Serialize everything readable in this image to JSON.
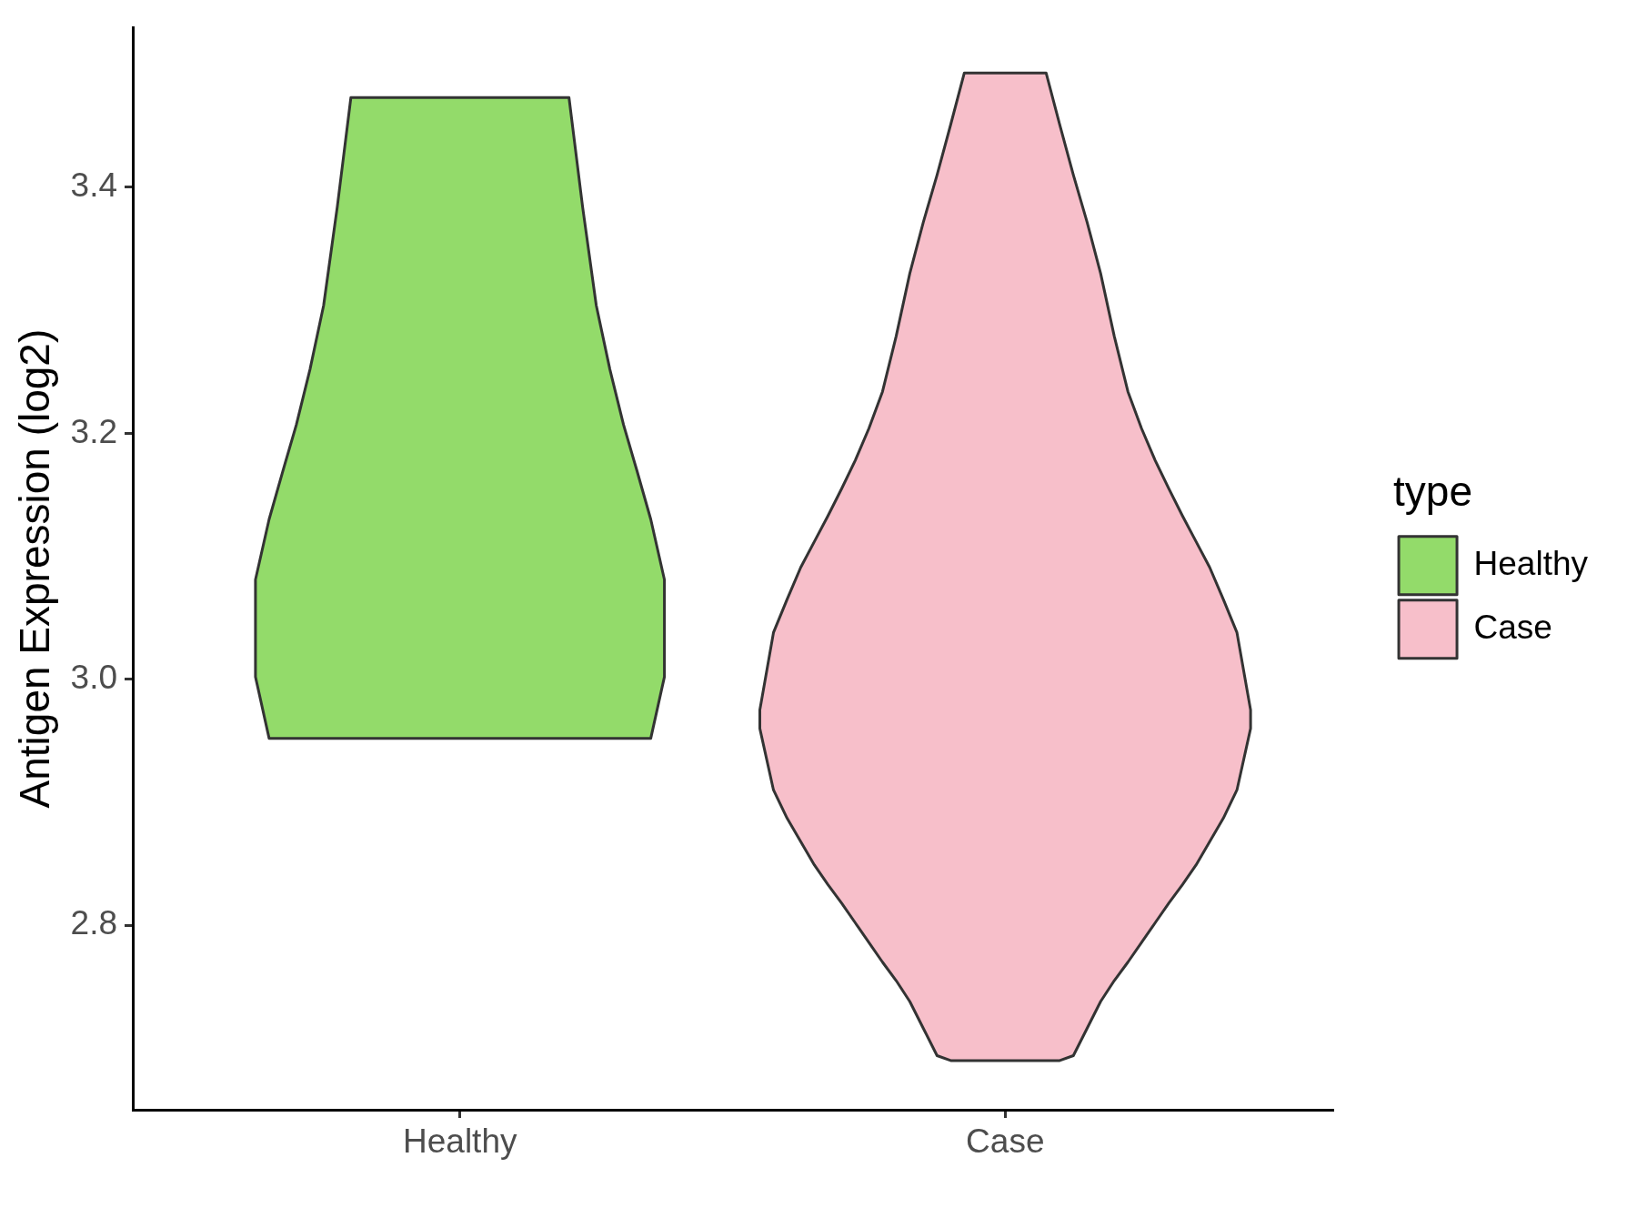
{
  "chart_data": {
    "type": "area",
    "ylabel": "Antigen Expression (log2)",
    "legend_title": "type",
    "legend": "right",
    "categories": [
      null,
      null,
      null,
      null,
      null,
      null,
      null,
      null,
      null,
      null,
      null,
      null,
      null,
      null,
      null,
      null,
      null,
      null,
      null,
      null,
      null,
      null,
      null,
      null,
      "Healthy",
      null,
      null,
      null,
      null,
      null,
      null,
      null,
      null,
      null,
      null,
      null,
      null,
      null,
      null,
      null,
      null,
      null,
      null,
      null,
      null,
      null,
      null,
      null,
      null,
      null,
      null,
      null,
      null,
      null,
      null,
      null,
      null,
      null,
      null,
      null,
      null,
      null,
      null,
      null,
      "Case",
      null,
      null,
      null,
      null,
      null,
      null,
      null,
      null,
      null,
      null,
      null,
      null,
      null,
      null,
      null,
      null,
      null,
      null,
      null,
      null,
      null,
      null,
      null,
      null
    ],
    "ylim": [
      2.65,
      3.53
    ],
    "yticks": [
      2.8,
      {
        "value": 3,
        "label": "3.0"
      },
      3.2,
      3.4
    ],
    "series": [
      {
        "name": "Healthy",
        "color": "#93db6a",
        "values": [
          null,
          null,
          null,
          null,
          null,
          null,
          null,
          null,
          null,
          null,
          null,
          null,
          null,
          null,
          null,
          null,
          null,
          null,
          null,
          null,
          null,
          null,
          null,
          null,
          null,
          null,
          null,
          null,
          null,
          null,
          null,
          null,
          null,
          null,
          null,
          null,
          null,
          null,
          null,
          null,
          null,
          null,
          null,
          null,
          null,
          null,
          null,
          null,
          null,
          null,
          null,
          null,
          null,
          null,
          null,
          null,
          null,
          null,
          null,
          null,
          null,
          null,
          null,
          null,
          null,
          null,
          null,
          null,
          null,
          null,
          null,
          null,
          null,
          null,
          null,
          null,
          null,
          null,
          null,
          null,
          null,
          null,
          null,
          null,
          null,
          null,
          null,
          null,
          null
        ],
        "upper": [
          null,
          null,
          null,
          null,
          null,
          null,
          null,
          null,
          null,
          3.081,
          3.13,
          3.169,
          3.207,
          3.252,
          3.304,
          3.384,
          3.473,
          3.473,
          3.473,
          3.473,
          3.473,
          3.473,
          3.473,
          3.473,
          3.473,
          3.473,
          3.473,
          3.473,
          3.473,
          3.473,
          3.473,
          3.473,
          3.473,
          3.384,
          3.304,
          3.252,
          3.207,
          3.169,
          3.13,
          3.081,
          null,
          null,
          null,
          null,
          null,
          null,
          null,
          null,
          null,
          null,
          null,
          null,
          null,
          null,
          null,
          null,
          null,
          null,
          null,
          null,
          null,
          null,
          null,
          null,
          null,
          null,
          null,
          null,
          null,
          null,
          null,
          null,
          null,
          null,
          null,
          null,
          null,
          null,
          null,
          null,
          null,
          null,
          null,
          null,
          null,
          null,
          null,
          null,
          null
        ],
        "lower": [
          null,
          null,
          null,
          null,
          null,
          null,
          null,
          null,
          null,
          3.002,
          2.952,
          2.952,
          2.952,
          2.952,
          2.952,
          2.952,
          2.952,
          2.952,
          2.952,
          2.952,
          2.952,
          2.952,
          2.952,
          2.952,
          2.952,
          2.952,
          2.952,
          2.952,
          2.952,
          2.952,
          2.952,
          2.952,
          2.952,
          2.952,
          2.952,
          2.952,
          2.952,
          2.952,
          2.952,
          3.002,
          null,
          null,
          null,
          null,
          null,
          null,
          null,
          null,
          null,
          null,
          null,
          null,
          null,
          null,
          null,
          null,
          null,
          null,
          null,
          null,
          null,
          null,
          null,
          null,
          null,
          null,
          null,
          null,
          null,
          null,
          null,
          null,
          null,
          null,
          null,
          null,
          null,
          null,
          null,
          null,
          null,
          null,
          null,
          null,
          null,
          null,
          null,
          null,
          null
        ]
      },
      {
        "name": "Case",
        "color": "#f7bfca",
        "values": [
          null,
          null,
          null,
          null,
          null,
          null,
          null,
          null,
          null,
          null,
          null,
          null,
          null,
          null,
          null,
          null,
          null,
          null,
          null,
          null,
          null,
          null,
          null,
          null,
          null,
          null,
          null,
          null,
          null,
          null,
          null,
          null,
          null,
          null,
          null,
          null,
          null,
          null,
          null,
          null,
          null,
          null,
          null,
          null,
          null,
          null,
          null,
          null,
          null,
          null,
          null,
          null,
          null,
          null,
          null,
          null,
          null,
          null,
          null,
          null,
          null,
          null,
          null,
          null,
          null,
          null,
          null,
          null,
          null,
          null,
          null,
          null,
          null,
          null,
          null,
          null,
          null,
          null,
          null,
          null,
          null,
          null,
          null,
          null,
          null,
          null,
          null,
          null,
          null
        ],
        "upper": [
          null,
          null,
          null,
          null,
          null,
          null,
          null,
          null,
          null,
          null,
          null,
          null,
          null,
          null,
          null,
          null,
          null,
          null,
          null,
          null,
          null,
          null,
          null,
          null,
          null,
          null,
          null,
          null,
          null,
          null,
          null,
          null,
          null,
          null,
          null,
          null,
          null,
          null,
          null,
          null,
          null,
          null,
          null,
          null,
          null,
          null,
          2.975,
          3.038,
          3.065,
          3.091,
          3.112,
          3.133,
          3.155,
          3.178,
          3.204,
          3.234,
          3.279,
          3.33,
          3.372,
          3.41,
          3.451,
          3.493,
          3.493,
          3.493,
          3.493,
          3.493,
          3.493,
          3.493,
          3.451,
          3.41,
          3.372,
          3.33,
          3.279,
          3.234,
          3.204,
          3.178,
          3.155,
          3.133,
          3.112,
          3.091,
          3.065,
          3.038,
          2.975,
          null,
          null,
          null,
          null,
          null,
          null
        ],
        "lower": [
          null,
          null,
          null,
          null,
          null,
          null,
          null,
          null,
          null,
          null,
          null,
          null,
          null,
          null,
          null,
          null,
          null,
          null,
          null,
          null,
          null,
          null,
          null,
          null,
          null,
          null,
          null,
          null,
          null,
          null,
          null,
          null,
          null,
          null,
          null,
          null,
          null,
          null,
          null,
          null,
          null,
          null,
          null,
          null,
          null,
          null,
          2.96,
          2.91,
          2.887,
          2.868,
          2.849,
          2.833,
          2.818,
          2.802,
          2.786,
          2.77,
          2.755,
          2.738,
          2.716,
          2.694,
          2.69,
          2.69,
          2.69,
          2.69,
          2.69,
          2.69,
          2.69,
          2.69,
          2.69,
          2.694,
          2.716,
          2.738,
          2.755,
          2.77,
          2.786,
          2.802,
          2.818,
          2.833,
          2.849,
          2.868,
          2.887,
          2.91,
          2.96,
          null,
          null,
          null,
          null,
          null,
          null
        ]
      }
    ]
  }
}
